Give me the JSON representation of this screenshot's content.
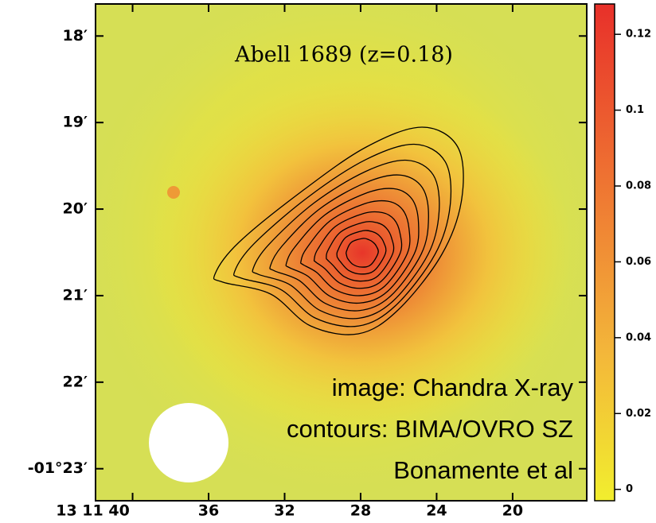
{
  "chart_data": {
    "type": "image",
    "title": "Abell 1689 (z=0.18)",
    "annotations": [
      "image: Chandra X-ray",
      "contours: BIMA/OVRO SZ",
      "Bonamente et al"
    ],
    "xlim": [
      41.95,
      16.1
    ],
    "xticks": [
      {
        "value": 40,
        "label": "13 11 40"
      },
      36,
      32,
      28,
      24,
      20
    ],
    "ylim": [
      17.63,
      23.37
    ],
    "yticks": [
      {
        "value": 18,
        "label": "18′"
      },
      {
        "value": 19,
        "label": "19′"
      },
      {
        "value": 20,
        "label": "20′"
      },
      {
        "value": 21,
        "label": "21′"
      },
      {
        "value": 22,
        "label": "22′"
      },
      {
        "value": 23,
        "label": "-01°23′"
      }
    ],
    "colorbar": {
      "lim": [
        -0.003,
        0.128
      ],
      "ticks": [
        0,
        0.02,
        0.04,
        0.06,
        0.08,
        0.1,
        0.12
      ]
    }
  }
}
